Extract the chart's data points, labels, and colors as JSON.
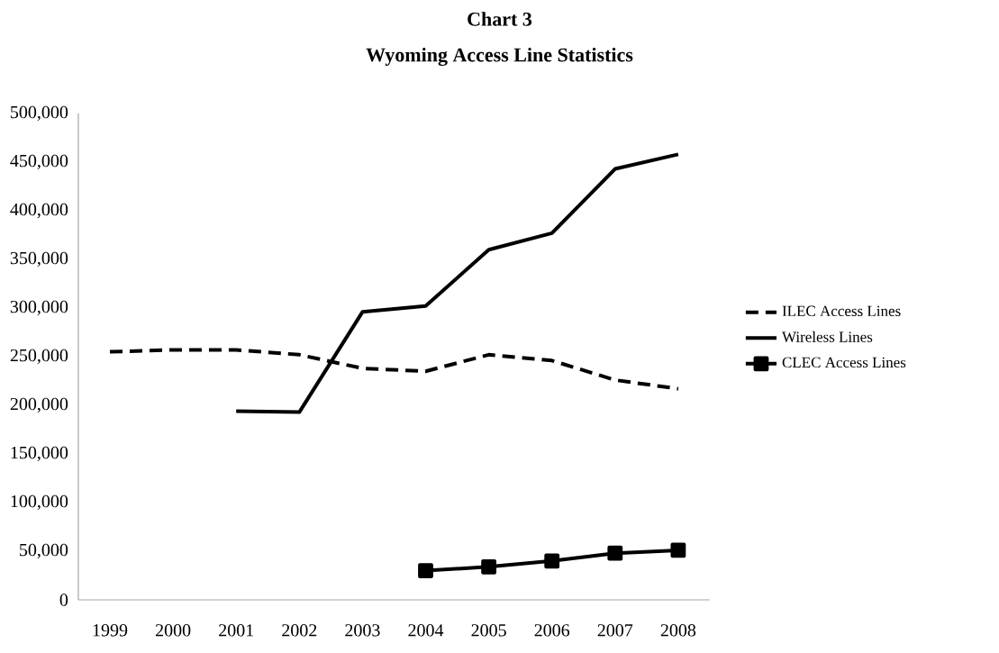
{
  "chart_data": {
    "type": "line",
    "title": "Chart 3",
    "subtitle": "Wyoming Access Line Statistics",
    "categories": [
      "1999",
      "2000",
      "2001",
      "2002",
      "2003",
      "2004",
      "2005",
      "2006",
      "2007",
      "2008"
    ],
    "series": [
      {
        "name": "ILEC Access Lines",
        "color": "#000000",
        "line_style": "dashed",
        "values": [
          255000,
          257000,
          257000,
          252000,
          238000,
          235000,
          252000,
          246000,
          226000,
          217000
        ]
      },
      {
        "name": "Wireless Lines",
        "color": "#000000",
        "line_style": "solid",
        "values": [
          null,
          null,
          194000,
          193000,
          296000,
          302000,
          360000,
          377000,
          443000,
          458000
        ]
      },
      {
        "name": "CLEC Access Lines",
        "color": "#000000",
        "line_style": "solid",
        "marker": "square",
        "values": [
          null,
          null,
          null,
          null,
          null,
          30000,
          34000,
          40000,
          48000,
          51000
        ]
      }
    ],
    "ylim": [
      0,
      500000
    ],
    "yticks": [
      0,
      {
        "value": 50000,
        "label": "50,000"
      },
      {
        "value": 100000,
        "label": "100,000"
      },
      {
        "value": 150000,
        "label": "150,000"
      },
      {
        "value": 200000,
        "label": "200,000"
      },
      {
        "value": 250000,
        "label": "250,000"
      },
      {
        "value": 300000,
        "label": "300,000"
      },
      {
        "value": 350000,
        "label": "350,000"
      },
      {
        "value": 400000,
        "label": "400,000"
      },
      {
        "value": 450000,
        "label": "450,000"
      },
      {
        "value": 500000,
        "label": "500,000"
      }
    ],
    "grid": false,
    "legend": "right"
  }
}
